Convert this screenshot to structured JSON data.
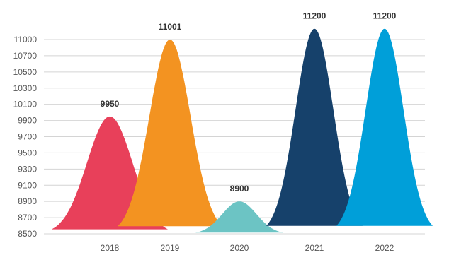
{
  "chart_data": {
    "type": "area",
    "categories": [
      "2018",
      "2019",
      "2020",
      "2021",
      "2022"
    ],
    "values": [
      9950,
      11001,
      8900,
      11200,
      11200
    ],
    "data_labels": [
      "9950",
      "11001",
      "8900",
      "11200",
      "11200"
    ],
    "colors": [
      "#e8405a",
      "#f39321",
      "#6cc4c4",
      "#16416b",
      "#009fd9"
    ],
    "yticks": [
      "8500",
      "8700",
      "8900",
      "9100",
      "9300",
      "9500",
      "9700",
      "9900",
      "10100",
      "10300",
      "10500",
      "10700",
      "11000"
    ],
    "title": "",
    "xlabel": "",
    "ylabel": "",
    "grid": true,
    "legend": "none"
  }
}
